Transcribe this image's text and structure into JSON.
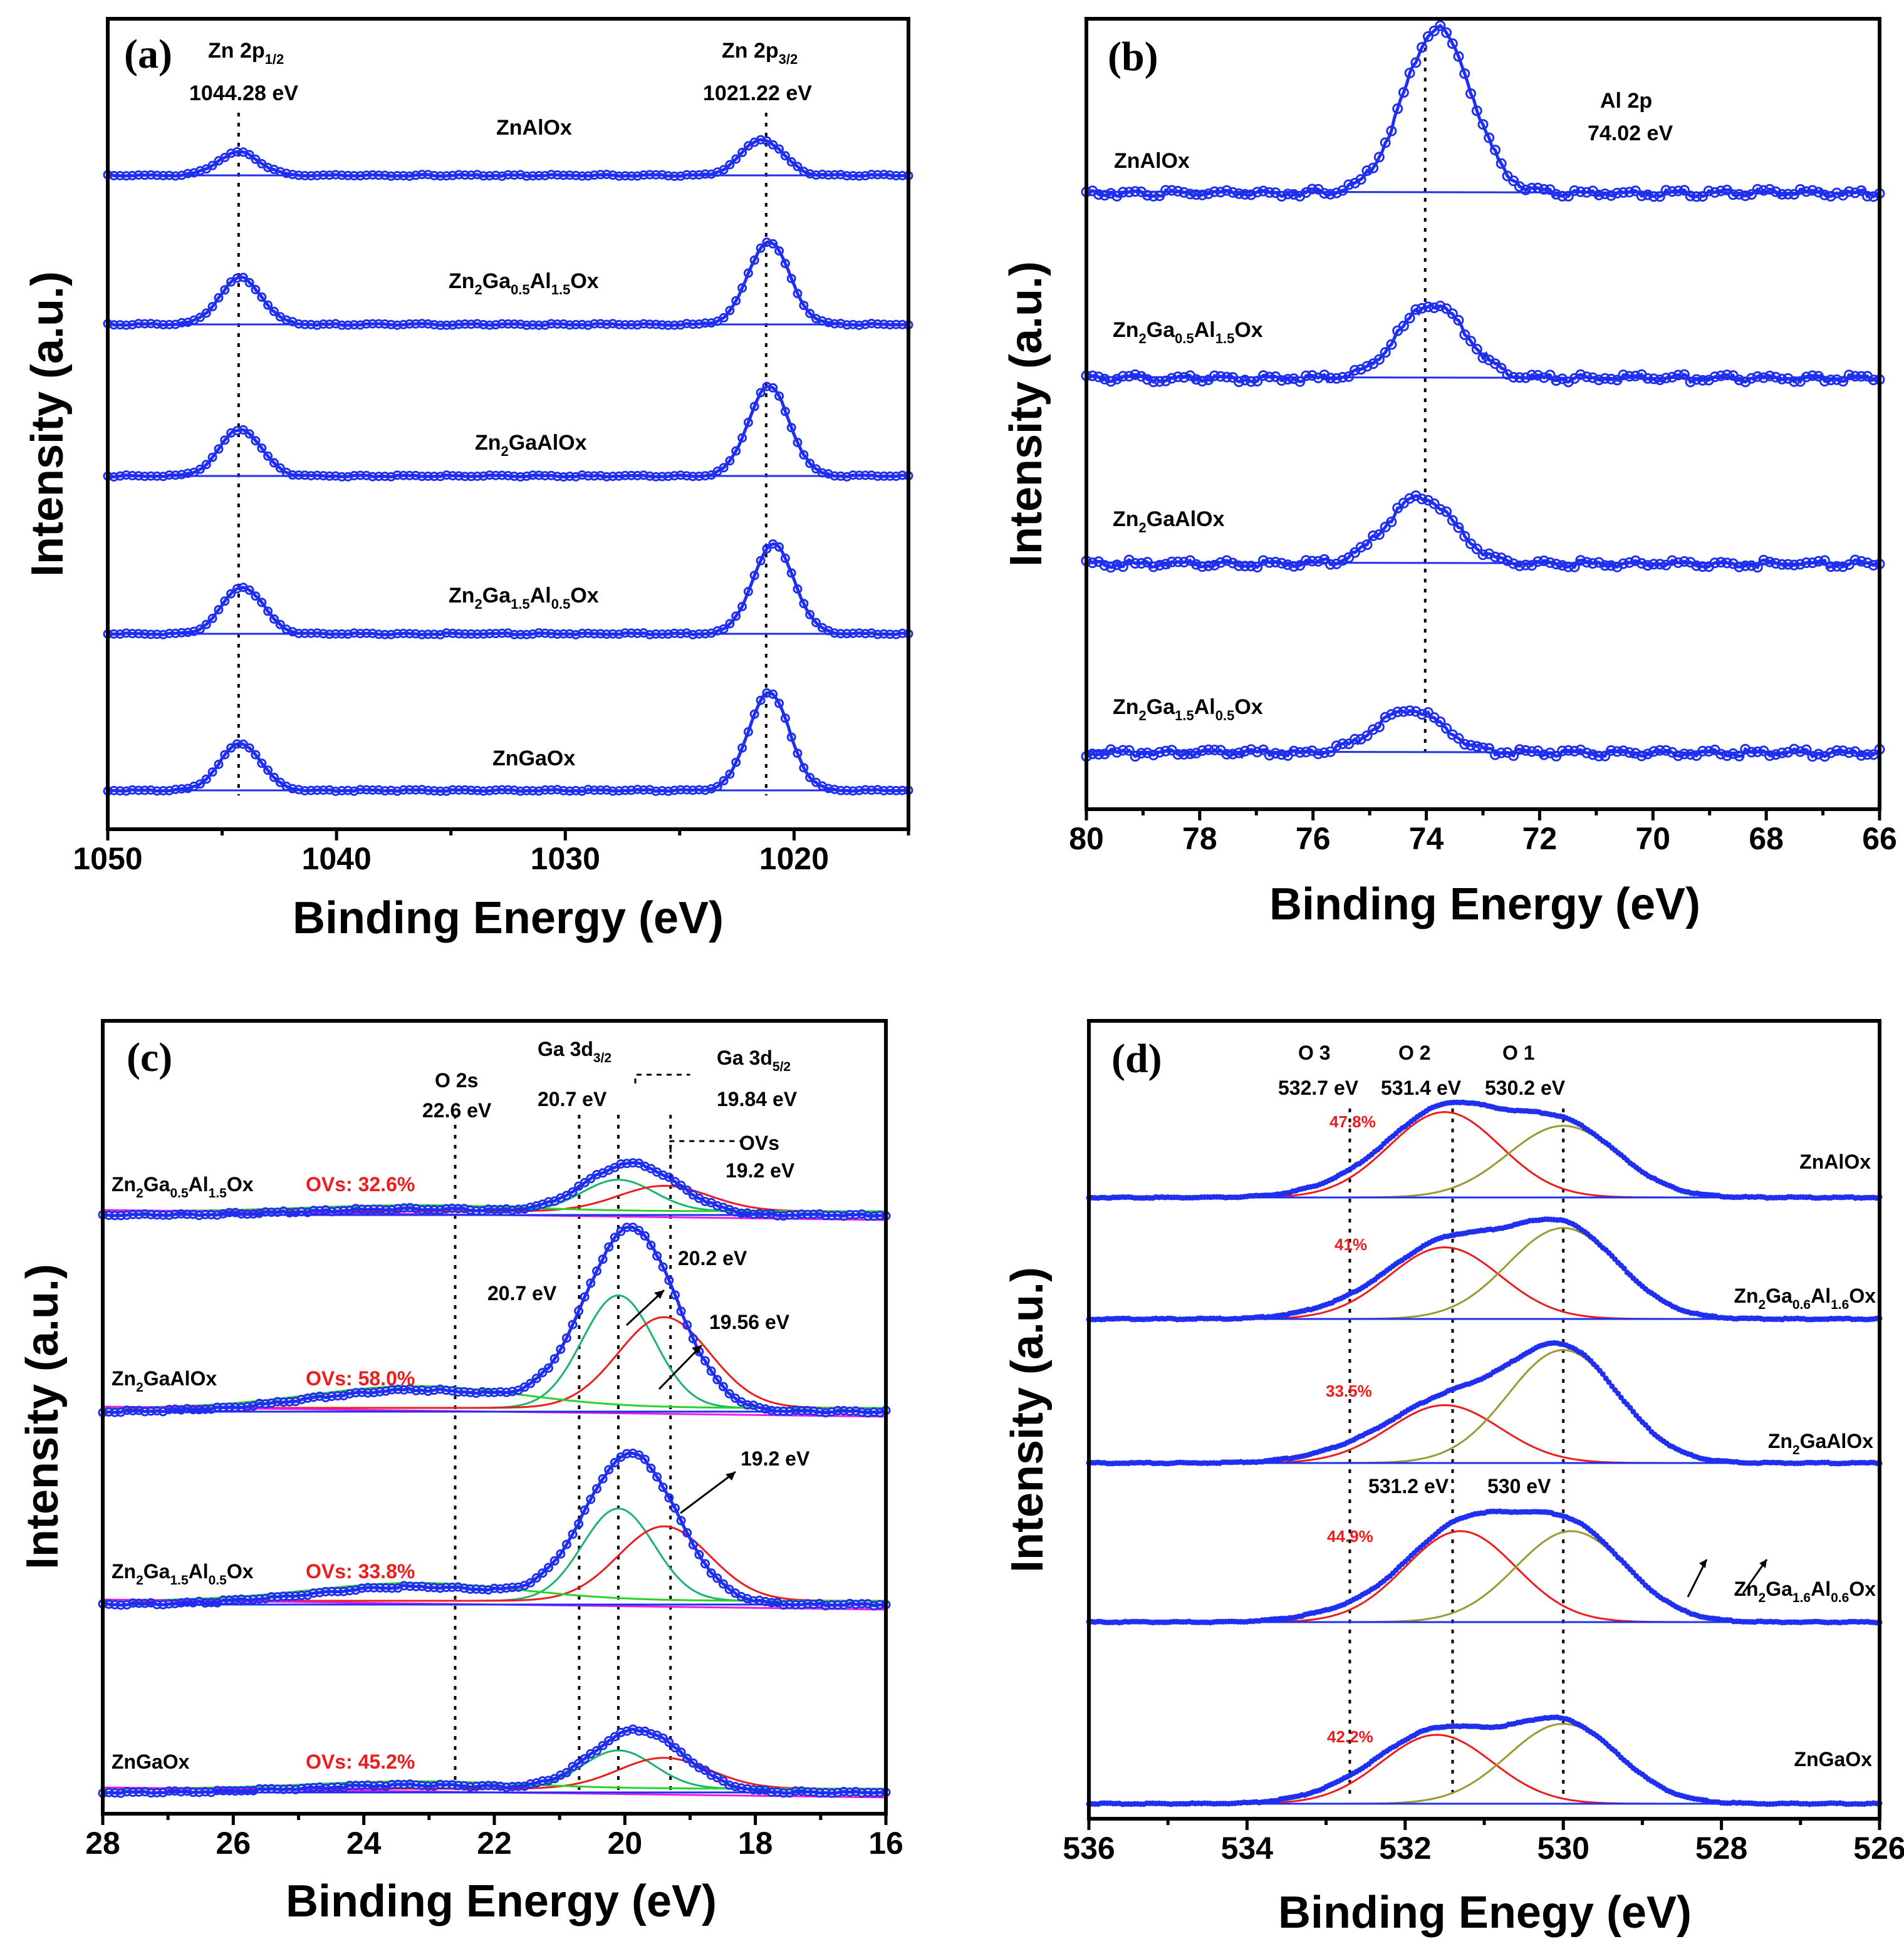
{
  "colors": {
    "data": "#1f2ff0",
    "axis": "#000000",
    "red": "#ee1c1c",
    "green": "#1cb36b",
    "lime": "#2ad12a",
    "magenta": "#e61ee6",
    "olive": "#9a9a2e",
    "ovs": "#ee1c1c"
  },
  "chart_data": [
    {
      "panel": "(a)",
      "type": "line",
      "xlabel": "Binding Energy (eV)",
      "ylabel": "Intensity (a.u.)",
      "xlim": [
        1050,
        1015
      ],
      "xticks": [
        1050,
        1040,
        1030,
        1020
      ],
      "peak_annotations": [
        {
          "label": "Zn 2p",
          "sub": "1/2",
          "value": "1044.28 eV",
          "x": 1044.28
        },
        {
          "label": "Zn 2p",
          "sub": "3/2",
          "value": "1021.22 eV",
          "x": 1021.22
        }
      ],
      "series": [
        {
          "name": "ZnAlOx",
          "peaks": [
            {
              "center": 1044.28,
              "height": 0.22,
              "width": 0.9
            },
            {
              "center": 1021.4,
              "height": 0.34,
              "width": 0.9
            }
          ]
        },
        {
          "name": "Zn2Ga0.5Al1.5Ox",
          "peaks": [
            {
              "center": 1044.2,
              "height": 0.44,
              "width": 0.9
            },
            {
              "center": 1021.1,
              "height": 0.78,
              "width": 0.9
            }
          ]
        },
        {
          "name": "Zn2GaAlOx",
          "peaks": [
            {
              "center": 1044.2,
              "height": 0.44,
              "width": 0.9
            },
            {
              "center": 1021.1,
              "height": 0.84,
              "width": 0.9
            }
          ]
        },
        {
          "name": "Zn2Ga1.5Al0.5Ox",
          "peaks": [
            {
              "center": 1044.1,
              "height": 0.44,
              "width": 0.9
            },
            {
              "center": 1020.9,
              "height": 0.84,
              "width": 0.9
            }
          ]
        },
        {
          "name": "ZnGaOx",
          "peaks": [
            {
              "center": 1044.2,
              "height": 0.44,
              "width": 0.9
            },
            {
              "center": 1021.1,
              "height": 0.92,
              "width": 0.9
            }
          ]
        }
      ]
    },
    {
      "panel": "(b)",
      "type": "line",
      "xlabel": "Binding Energy (eV)",
      "ylabel": "Intensity (a.u.)",
      "xlim": [
        80,
        66
      ],
      "xticks": [
        80,
        78,
        76,
        74,
        72,
        70,
        68,
        66
      ],
      "peak_annotations": [
        {
          "label": "Al 2p",
          "value": "74.02 eV",
          "x": 74.02
        }
      ],
      "series": [
        {
          "name": "ZnAlOx",
          "center": 73.8,
          "height": 1.0
        },
        {
          "name": "Zn2Ga0.5Al1.5Ox",
          "center": 73.9,
          "height": 0.45
        },
        {
          "name": "Zn2GaAlOx",
          "center": 74.1,
          "height": 0.4
        },
        {
          "name": "Zn2Ga1.5Al0.5Ox",
          "center": 74.3,
          "height": 0.26
        }
      ]
    },
    {
      "panel": "(c)",
      "type": "line",
      "xlabel": "Binding Energy (eV)",
      "ylabel": "Intensity (a.u.)",
      "xlim": [
        28,
        16
      ],
      "xticks": [
        28,
        26,
        24,
        22,
        20,
        18,
        16
      ],
      "peak_annotations": [
        {
          "label": "O 2s",
          "value": "22.6 eV",
          "x": 22.6
        },
        {
          "label": "Ga 3d",
          "sub": "3/2",
          "value": "20.7 eV",
          "x": 20.7
        },
        {
          "label": "Ga 3d",
          "sub": "5/2",
          "value": "19.84 eV",
          "x": 19.84
        },
        {
          "label": "OVs",
          "value": "19.2 eV",
          "x": 19.2
        }
      ],
      "inline_labels": [
        "20.7 eV",
        "20.2 eV",
        "19.56 eV",
        "19.2 eV"
      ],
      "series": [
        {
          "name": "Zn2Ga0.5Al1.5Ox",
          "ovs": "OVs: 32.6%",
          "center": 19.9,
          "height": 0.28
        },
        {
          "name": "Zn2GaAlOx",
          "ovs": "OVs: 58.0%",
          "center": 19.9,
          "height": 1.0
        },
        {
          "name": "Zn2Ga1.5Al0.5Ox",
          "ovs": "OVs: 33.8%",
          "center": 19.9,
          "height": 0.82
        },
        {
          "name": "ZnGaOx",
          "ovs": "OVs: 45.2%",
          "center": 19.8,
          "height": 0.34
        }
      ]
    },
    {
      "panel": "(d)",
      "type": "line",
      "xlabel": "Binding Enegy (eV)",
      "ylabel": "Intensity (a.u.)",
      "xlim": [
        536,
        526
      ],
      "xticks": [
        536,
        534,
        532,
        530,
        528,
        526
      ],
      "peak_annotations": [
        {
          "label": "O 3",
          "value": "532.7 eV",
          "x": 532.7
        },
        {
          "label": "O 2",
          "value": "531.4 eV",
          "x": 531.4
        },
        {
          "label": "O 1",
          "value": "530.2 eV",
          "x": 530.2
        }
      ],
      "inline_labels": [
        "531.2 eV",
        "530 eV"
      ],
      "series": [
        {
          "name": "ZnAlOx",
          "pct": "47.8%",
          "o2": {
            "center": 531.5,
            "height": 0.62
          },
          "o1": {
            "center": 530.0,
            "height": 0.52
          }
        },
        {
          "name": "Zn2Ga0.6Al1.6Ox",
          "pct": "41%",
          "o2": {
            "center": 531.5,
            "height": 0.52
          },
          "o1": {
            "center": 530.0,
            "height": 0.66
          }
        },
        {
          "name": "Zn2GaAlOx",
          "pct": "33.5%",
          "o2": {
            "center": 531.5,
            "height": 0.42
          },
          "o1": {
            "center": 530.0,
            "height": 0.82
          }
        },
        {
          "name": "Zn2Ga1.6Al0.6Ox",
          "pct": "44.9%",
          "o2": {
            "center": 531.3,
            "height": 0.66
          },
          "o1": {
            "center": 529.9,
            "height": 0.66
          }
        },
        {
          "name": "ZnGaOx",
          "pct": "42.2%",
          "o2": {
            "center": 531.6,
            "height": 0.5
          },
          "o1": {
            "center": 530.0,
            "height": 0.58
          }
        }
      ]
    }
  ],
  "panels": {
    "a": {
      "letter": "(a)",
      "xlabel": "Binding Energy (eV)",
      "ylabel": "Intensity (a.u.)",
      "ticks": [
        "1050",
        "1040",
        "1030",
        "1020"
      ],
      "peak1_label": "Zn 2p",
      "peak1_sub": "1/2",
      "peak1_value": "1044.28 eV",
      "peak2_label": "Zn 2p",
      "peak2_sub": "3/2",
      "peak2_value": "1021.22 eV",
      "s1_name": "ZnAlOx",
      "s2_main": "Zn",
      "s2_sub1": "2",
      "s2_mid": "Ga",
      "s2_sub2": "0.5",
      "s2_mid2": "Al",
      "s2_sub3": "1.5",
      "s2_end": "Ox",
      "s3_main": "Zn",
      "s3_sub1": "2",
      "s3_end": "GaAlOx",
      "s4_main": "Zn",
      "s4_sub1": "2",
      "s4_mid": "Ga",
      "s4_sub2": "1.5",
      "s4_mid2": "Al",
      "s4_sub3": "0.5",
      "s4_end": "Ox",
      "s5_name": "ZnGaOx"
    },
    "b": {
      "letter": "(b)",
      "xlabel": "Binding Energy (eV)",
      "ylabel": "Intensity (a.u.)",
      "ticks": [
        "80",
        "78",
        "76",
        "74",
        "72",
        "70",
        "68",
        "66"
      ],
      "peak_label": "Al 2p",
      "peak_value": "74.02 eV",
      "s1_name": "ZnAlOx",
      "s2_main": "Zn",
      "s2_sub1": "2",
      "s2_mid": "Ga",
      "s2_sub2": "0.5",
      "s2_mid2": "Al",
      "s2_sub3": "1.5",
      "s2_end": "Ox",
      "s3_main": "Zn",
      "s3_sub1": "2",
      "s3_end": "GaAlOx",
      "s4_main": "Zn",
      "s4_sub1": "2",
      "s4_mid": "Ga",
      "s4_sub2": "1.5",
      "s4_mid2": "Al",
      "s4_sub3": "0.5",
      "s4_end": "Ox"
    },
    "c": {
      "letter": "(c)",
      "xlabel": "Binding Energy (eV)",
      "ylabel": "Intensity (a.u.)",
      "ticks": [
        "28",
        "26",
        "24",
        "22",
        "20",
        "18",
        "16"
      ],
      "o2s_label": "O 2s",
      "o2s_value": "22.6 eV",
      "ga32_label": "Ga 3d",
      "ga32_sub": "3/2",
      "ga32_value": "20.7 eV",
      "ga52_label": "Ga 3d",
      "ga52_sub": "5/2",
      "ga52_value": "19.84 eV",
      "ovs_label": "OVs",
      "ovs_value": "19.2 eV",
      "in1": "20.7 eV",
      "in2": "20.2 eV",
      "in3": "19.56 eV",
      "in4": "19.2 eV",
      "s1_main": "Zn",
      "s1_sub1": "2",
      "s1_mid": "Ga",
      "s1_sub2": "0.5",
      "s1_mid2": "Al",
      "s1_sub3": "1.5",
      "s1_end": "Ox",
      "s1_ovs": "OVs: 32.6%",
      "s2_main": "Zn",
      "s2_sub1": "2",
      "s2_end": "GaAlOx",
      "s2_ovs": "OVs: 58.0%",
      "s3_main": "Zn",
      "s3_sub1": "2",
      "s3_mid": "Ga",
      "s3_sub2": "1.5",
      "s3_mid2": "Al",
      "s3_sub3": "0.5",
      "s3_end": "Ox",
      "s3_ovs": "OVs: 33.8%",
      "s4_name": "ZnGaOx",
      "s4_ovs": "OVs: 45.2%"
    },
    "d": {
      "letter": "(d)",
      "xlabel": "Binding Enegy (eV)",
      "ylabel": "Intensity (a.u.)",
      "ticks": [
        "536",
        "534",
        "532",
        "530",
        "528",
        "526"
      ],
      "o3_label": "O 3",
      "o3_value": "532.7 eV",
      "o2_label": "O 2",
      "o2_value": "531.4 eV",
      "o1_label": "O 1",
      "o1_value": "530.2 eV",
      "in1": "531.2 eV",
      "in2": "530 eV",
      "s1_name": "ZnAlOx",
      "s1_pct": "47.8%",
      "s2_main": "Zn",
      "s2_sub1": "2",
      "s2_mid": "Ga",
      "s2_sub2": "0.6",
      "s2_mid2": "Al",
      "s2_sub3": "1.6",
      "s2_end": "Ox",
      "s2_pct": "41%",
      "s3_main": "Zn",
      "s3_sub1": "2",
      "s3_end": "GaAlOx",
      "s3_pct": "33.5%",
      "s4_main": "Zn",
      "s4_sub1": "2",
      "s4_mid": "Ga",
      "s4_sub2": "1.6",
      "s4_mid2": "Al",
      "s4_sub3": "0.6",
      "s4_end": "Ox",
      "s4_pct": "44.9%",
      "s5_name": "ZnGaOx",
      "s5_pct": "42.2%"
    }
  }
}
